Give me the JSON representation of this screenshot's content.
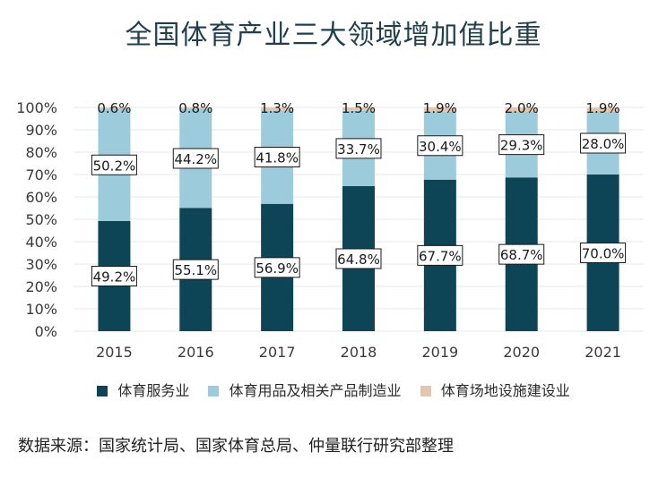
{
  "title": "全国体育产业三大领域增加值比重",
  "source": "数据来源：国家统计局、国家体育总局、仲量联行研究部整理",
  "colors": {
    "services": "#0d4456",
    "manufacturing": "#9ccbdb",
    "facilities": "#e2c7b0",
    "grid": "#e7e7e7",
    "axis_text": "#3a3a3a",
    "title": "#1f3f4c"
  },
  "chart_data": {
    "type": "bar",
    "stacked": true,
    "title": "全国体育产业三大领域增加值比重",
    "categories": [
      "2015",
      "2016",
      "2017",
      "2018",
      "2019",
      "2020",
      "2021"
    ],
    "series": [
      {
        "name": "体育服务业",
        "values": [
          49.2,
          55.1,
          56.9,
          64.8,
          67.7,
          68.7,
          70.0
        ],
        "labels": [
          "49.2%",
          "55.1%",
          "56.9%",
          "64.8%",
          "67.7%",
          "68.7%",
          "70.0%"
        ]
      },
      {
        "name": "体育用品及相关产品制造业",
        "values": [
          50.2,
          44.2,
          41.8,
          33.7,
          30.4,
          29.3,
          28.0
        ],
        "labels": [
          "50.2%",
          "44.2%",
          "41.8%",
          "33.7%",
          "30.4%",
          "29.3%",
          "28.0%"
        ]
      },
      {
        "name": "体育场地设施建设业",
        "values": [
          0.6,
          0.8,
          1.3,
          1.5,
          1.9,
          2.0,
          1.9
        ],
        "labels": [
          "0.6%",
          "0.8%",
          "1.3%",
          "1.5%",
          "1.9%",
          "2.0%",
          "1.9%"
        ]
      }
    ],
    "ylim": [
      0,
      100
    ],
    "yticks": [
      "0%",
      "10%",
      "20%",
      "30%",
      "40%",
      "50%",
      "60%",
      "70%",
      "80%",
      "90%",
      "100%"
    ],
    "grid": true,
    "legend_position": "bottom"
  }
}
